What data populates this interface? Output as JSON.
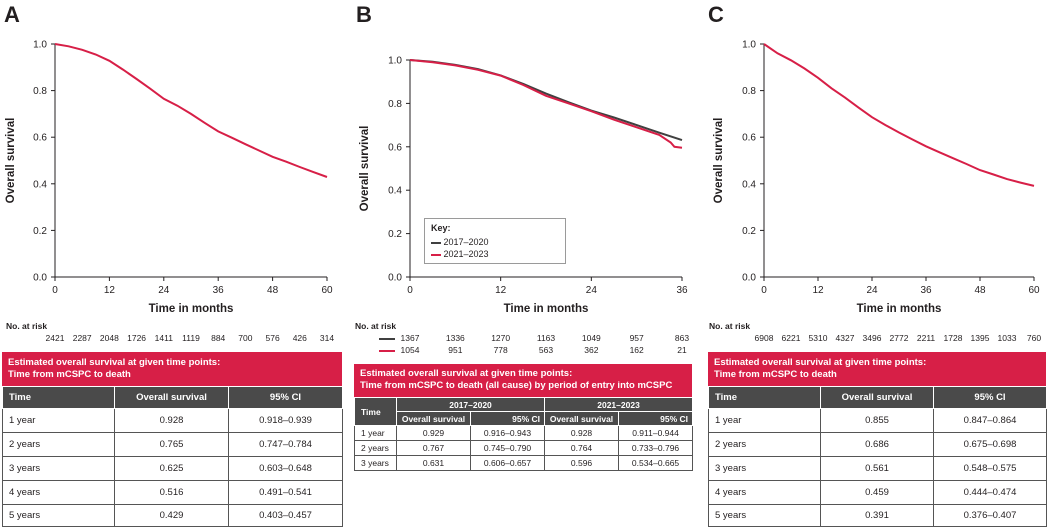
{
  "colors": {
    "red": "#d71f47",
    "dark": "#404040",
    "header_gray": "#4a4a4a"
  },
  "panels": {
    "A": {
      "letter": "A",
      "risk_label": "No. at risk",
      "risk_values": [
        "2421",
        "2287",
        "2048",
        "1726",
        "1411",
        "1119",
        "884",
        "700",
        "576",
        "426",
        "314"
      ],
      "table_title_1": "Estimated overall survival at given time points:",
      "table_title_2": "Time from mCSPC to death",
      "table": {
        "headers": [
          "Time",
          "Overall survival",
          "95% CI"
        ],
        "rows": [
          [
            "1 year",
            "0.928",
            "0.918–0.939"
          ],
          [
            "2 years",
            "0.765",
            "0.747–0.784"
          ],
          [
            "3 years",
            "0.625",
            "0.603–0.648"
          ],
          [
            "4 years",
            "0.516",
            "0.491–0.541"
          ],
          [
            "5 years",
            "0.429",
            "0.403–0.457"
          ]
        ]
      }
    },
    "B": {
      "letter": "B",
      "risk_label": "No. at risk",
      "risk_rows": [
        {
          "values": [
            "1367",
            "1336",
            "1270",
            "1163",
            "1049",
            "957",
            "863"
          ]
        },
        {
          "values": [
            "1054",
            "951",
            "778",
            "563",
            "362",
            "162",
            "21"
          ]
        }
      ],
      "key_title": "Key:",
      "table_title_1": "Estimated overall survival at given time points:",
      "table_title_2": "Time from mCSPC to death (all cause) by period of entry into mCSPC",
      "table": {
        "time_label": "Time",
        "group_1": "2017–2020",
        "group_2": "2021–2023",
        "sub_headers": [
          "Overall survival",
          "95% CI",
          "Overall survival",
          "95% CI"
        ],
        "rows": [
          [
            "1 year",
            "0.929",
            "0.916–0.943",
            "0.928",
            "0.911–0.944"
          ],
          [
            "2 years",
            "0.767",
            "0.745–0.790",
            "0.764",
            "0.733–0.796"
          ],
          [
            "3 years",
            "0.631",
            "0.606–0.657",
            "0.596",
            "0.534–0.665"
          ]
        ]
      }
    },
    "C": {
      "letter": "C",
      "risk_label": "No. at risk",
      "risk_values": [
        "6908",
        "6221",
        "5310",
        "4327",
        "3496",
        "2772",
        "2211",
        "1728",
        "1395",
        "1033",
        "760"
      ],
      "table_title_1": "Estimated overall survival at given time points:",
      "table_title_2": "Time from mCSPC to death",
      "table": {
        "headers": [
          "Time",
          "Overall survival",
          "95% CI"
        ],
        "rows": [
          [
            "1 year",
            "0.855",
            "0.847–0.864"
          ],
          [
            "2 years",
            "0.686",
            "0.675–0.698"
          ],
          [
            "3 years",
            "0.561",
            "0.548–0.575"
          ],
          [
            "4 years",
            "0.459",
            "0.444–0.474"
          ],
          [
            "5 years",
            "0.391",
            "0.376–0.407"
          ]
        ]
      }
    }
  },
  "chart_data": [
    {
      "type": "line",
      "xlabel": "Time in months",
      "ylabel": "Overall survival",
      "xlim": [
        0,
        60
      ],
      "ylim": [
        0,
        1.0
      ],
      "xticks": [
        "0",
        "12",
        "24",
        "36",
        "48",
        "60"
      ],
      "yticks": [
        "0.0",
        "0.2",
        "0.4",
        "0.6",
        "0.8",
        "1.0"
      ],
      "series": [
        {
          "color": "#d71f47",
          "x": [
            0,
            3,
            6,
            9,
            12,
            15,
            18,
            21,
            24,
            27,
            30,
            33,
            36,
            39,
            42,
            45,
            48,
            51,
            54,
            57,
            60
          ],
          "y": [
            1.0,
            0.99,
            0.975,
            0.955,
            0.928,
            0.89,
            0.85,
            0.808,
            0.765,
            0.735,
            0.7,
            0.662,
            0.625,
            0.598,
            0.57,
            0.543,
            0.516,
            0.495,
            0.472,
            0.45,
            0.429
          ]
        }
      ]
    },
    {
      "type": "line",
      "xlabel": "Time in months",
      "ylabel": "Overall survival",
      "xlim": [
        0,
        36
      ],
      "ylim": [
        0,
        1.0
      ],
      "xticks": [
        "0",
        "12",
        "24",
        "36"
      ],
      "yticks": [
        "0.0",
        "0.2",
        "0.4",
        "0.6",
        "0.8",
        "1.0"
      ],
      "legend": "bottom-left",
      "series": [
        {
          "name": "2017–2020",
          "color": "#404040",
          "x": [
            0,
            3,
            6,
            9,
            12,
            15,
            18,
            21,
            24,
            27,
            30,
            33,
            36
          ],
          "y": [
            1.0,
            0.992,
            0.978,
            0.958,
            0.929,
            0.89,
            0.845,
            0.805,
            0.767,
            0.735,
            0.7,
            0.665,
            0.631
          ]
        },
        {
          "name": "2021–2023",
          "color": "#d71f47",
          "x": [
            0,
            3,
            6,
            9,
            12,
            15,
            18,
            21,
            24,
            27,
            30,
            33,
            34.5,
            35,
            36
          ],
          "y": [
            1.0,
            0.99,
            0.975,
            0.955,
            0.928,
            0.885,
            0.835,
            0.8,
            0.764,
            0.725,
            0.69,
            0.655,
            0.62,
            0.6,
            0.596
          ]
        }
      ]
    },
    {
      "type": "line",
      "xlabel": "Time in months",
      "ylabel": "Overall survival",
      "xlim": [
        0,
        60
      ],
      "ylim": [
        0,
        1.0
      ],
      "xticks": [
        "0",
        "12",
        "24",
        "36",
        "48",
        "60"
      ],
      "yticks": [
        "0.0",
        "0.2",
        "0.4",
        "0.6",
        "0.8",
        "1.0"
      ],
      "series": [
        {
          "color": "#d71f47",
          "x": [
            0,
            3,
            6,
            9,
            12,
            15,
            18,
            21,
            24,
            27,
            30,
            33,
            36,
            39,
            42,
            45,
            48,
            51,
            54,
            57,
            60
          ],
          "y": [
            1.0,
            0.96,
            0.93,
            0.895,
            0.855,
            0.81,
            0.77,
            0.727,
            0.686,
            0.652,
            0.62,
            0.59,
            0.561,
            0.535,
            0.51,
            0.485,
            0.459,
            0.44,
            0.42,
            0.405,
            0.391
          ]
        }
      ]
    }
  ]
}
